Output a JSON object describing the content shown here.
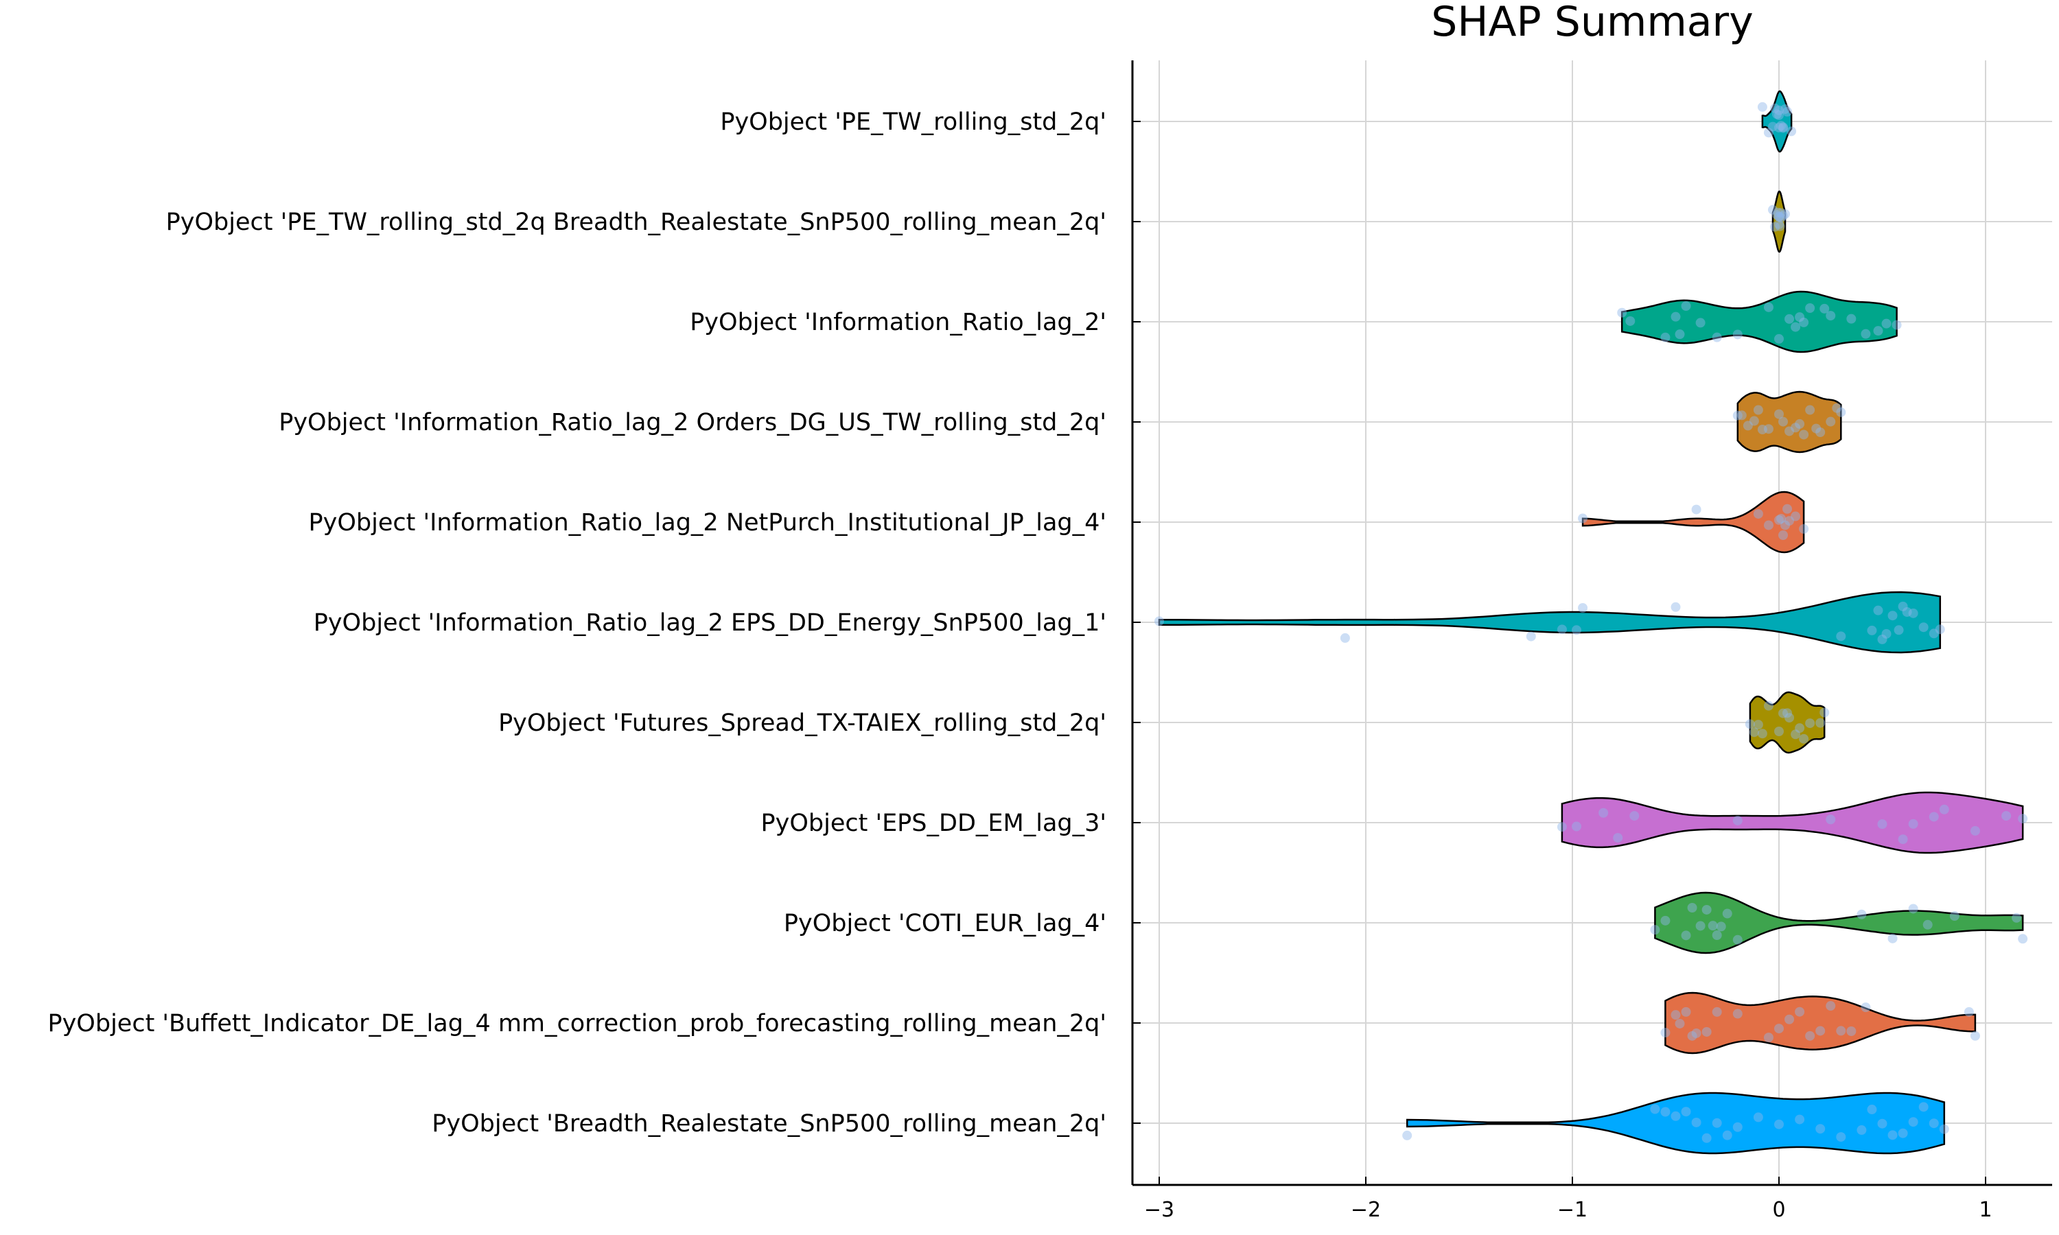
{
  "chart_data": {
    "type": "violin",
    "title": "SHAP Summary",
    "xlabel": "",
    "ylabel": "",
    "xlim": [
      -3.1,
      1.3
    ],
    "xticks": [
      -3,
      -2,
      -1,
      0,
      1
    ],
    "xtick_labels": [
      "−3",
      "−2",
      "−1",
      "0",
      "1"
    ],
    "grid": true,
    "legend": "none",
    "categories": [
      "PyObject 'PE_TW_rolling_std_2q'",
      "PyObject 'PE_TW_rolling_std_2q Breadth_Realestate_SnP500_rolling_mean_2q'",
      "PyObject 'Information_Ratio_lag_2'",
      "PyObject 'Information_Ratio_lag_2 Orders_DG_US_TW_rolling_std_2q'",
      "PyObject 'Information_Ratio_lag_2 NetPurch_Institutional_JP_lag_4'",
      "PyObject 'Information_Ratio_lag_2 EPS_DD_Energy_SnP500_lag_1'",
      "PyObject 'Futures_Spread_TX-TAIEX_rolling_std_2q'",
      "PyObject 'EPS_DD_EM_lag_3'",
      "PyObject 'COTI_EUR_lag_4'",
      "PyObject 'Buffett_Indicator_DE_lag_4 mm_correction_prob_forecasting_rolling_mean_2q'",
      "PyObject 'Breadth_Realestate_SnP500_rolling_mean_2q'"
    ],
    "series": [
      {
        "color": "#00a9b5",
        "points": [
          -0.08,
          -0.05,
          -0.03,
          -0.02,
          0.0,
          0.0,
          0.01,
          0.02,
          0.03,
          0.04,
          0.06,
          -0.01,
          0.02,
          0.0
        ]
      },
      {
        "color": "#a59000",
        "points": [
          -0.03,
          -0.02,
          -0.01,
          0.0,
          0.0,
          0.0,
          0.01,
          0.01,
          0.02,
          0.03,
          -0.005,
          0.005
        ]
      },
      {
        "color": "#00a68b",
        "points": [
          -0.76,
          -0.72,
          -0.55,
          -0.5,
          -0.48,
          -0.45,
          -0.3,
          -0.2,
          -0.05,
          0.0,
          0.05,
          0.08,
          0.12,
          0.15,
          0.22,
          0.25,
          0.35,
          0.42,
          0.48,
          0.52,
          0.57,
          -0.38,
          0.1
        ]
      },
      {
        "color": "#c68125",
        "points": [
          -0.2,
          -0.18,
          -0.15,
          -0.12,
          -0.1,
          -0.05,
          0.0,
          0.02,
          0.05,
          0.08,
          0.1,
          0.15,
          0.18,
          0.2,
          0.25,
          0.28,
          0.3,
          -0.08,
          0.12
        ]
      },
      {
        "color": "#e26f46",
        "points": [
          -0.95,
          -0.4,
          -0.1,
          -0.05,
          0.0,
          0.02,
          0.03,
          0.05,
          0.08,
          0.12,
          0.04,
          0.01
        ]
      },
      {
        "color": "#00a9b5",
        "points": [
          -3.0,
          -2.1,
          -1.2,
          -1.05,
          -0.98,
          -0.95,
          -0.5,
          0.3,
          0.45,
          0.5,
          0.55,
          0.58,
          0.6,
          0.65,
          0.7,
          0.75,
          0.78,
          0.52,
          0.62,
          0.48
        ]
      },
      {
        "color": "#a59000",
        "points": [
          -0.14,
          -0.12,
          -0.1,
          -0.08,
          -0.05,
          0.0,
          0.02,
          0.05,
          0.08,
          0.1,
          0.12,
          0.15,
          0.2,
          0.22,
          0.04
        ]
      },
      {
        "color": "#c66fd1",
        "points": [
          -1.05,
          -0.98,
          -0.85,
          -0.78,
          -0.7,
          -0.2,
          0.25,
          0.5,
          0.6,
          0.75,
          0.8,
          0.95,
          1.1,
          1.18,
          0.65
        ]
      },
      {
        "color": "#3ea44e",
        "points": [
          -0.6,
          -0.55,
          -0.45,
          -0.42,
          -0.38,
          -0.35,
          -0.32,
          -0.3,
          -0.28,
          -0.25,
          -0.2,
          0.4,
          0.55,
          0.65,
          0.72,
          0.85,
          1.15,
          1.18
        ]
      },
      {
        "color": "#e26f46",
        "points": [
          -0.55,
          -0.5,
          -0.48,
          -0.45,
          -0.42,
          -0.4,
          -0.35,
          -0.3,
          -0.2,
          -0.05,
          0.0,
          0.05,
          0.1,
          0.15,
          0.2,
          0.25,
          0.3,
          0.35,
          0.42,
          0.92,
          0.95
        ]
      },
      {
        "color": "#00a9ff",
        "points": [
          -1.8,
          -0.6,
          -0.55,
          -0.5,
          -0.45,
          -0.4,
          -0.35,
          -0.3,
          -0.25,
          -0.2,
          -0.1,
          0.0,
          0.1,
          0.2,
          0.3,
          0.4,
          0.45,
          0.5,
          0.55,
          0.6,
          0.65,
          0.7,
          0.75,
          0.8
        ]
      }
    ]
  }
}
